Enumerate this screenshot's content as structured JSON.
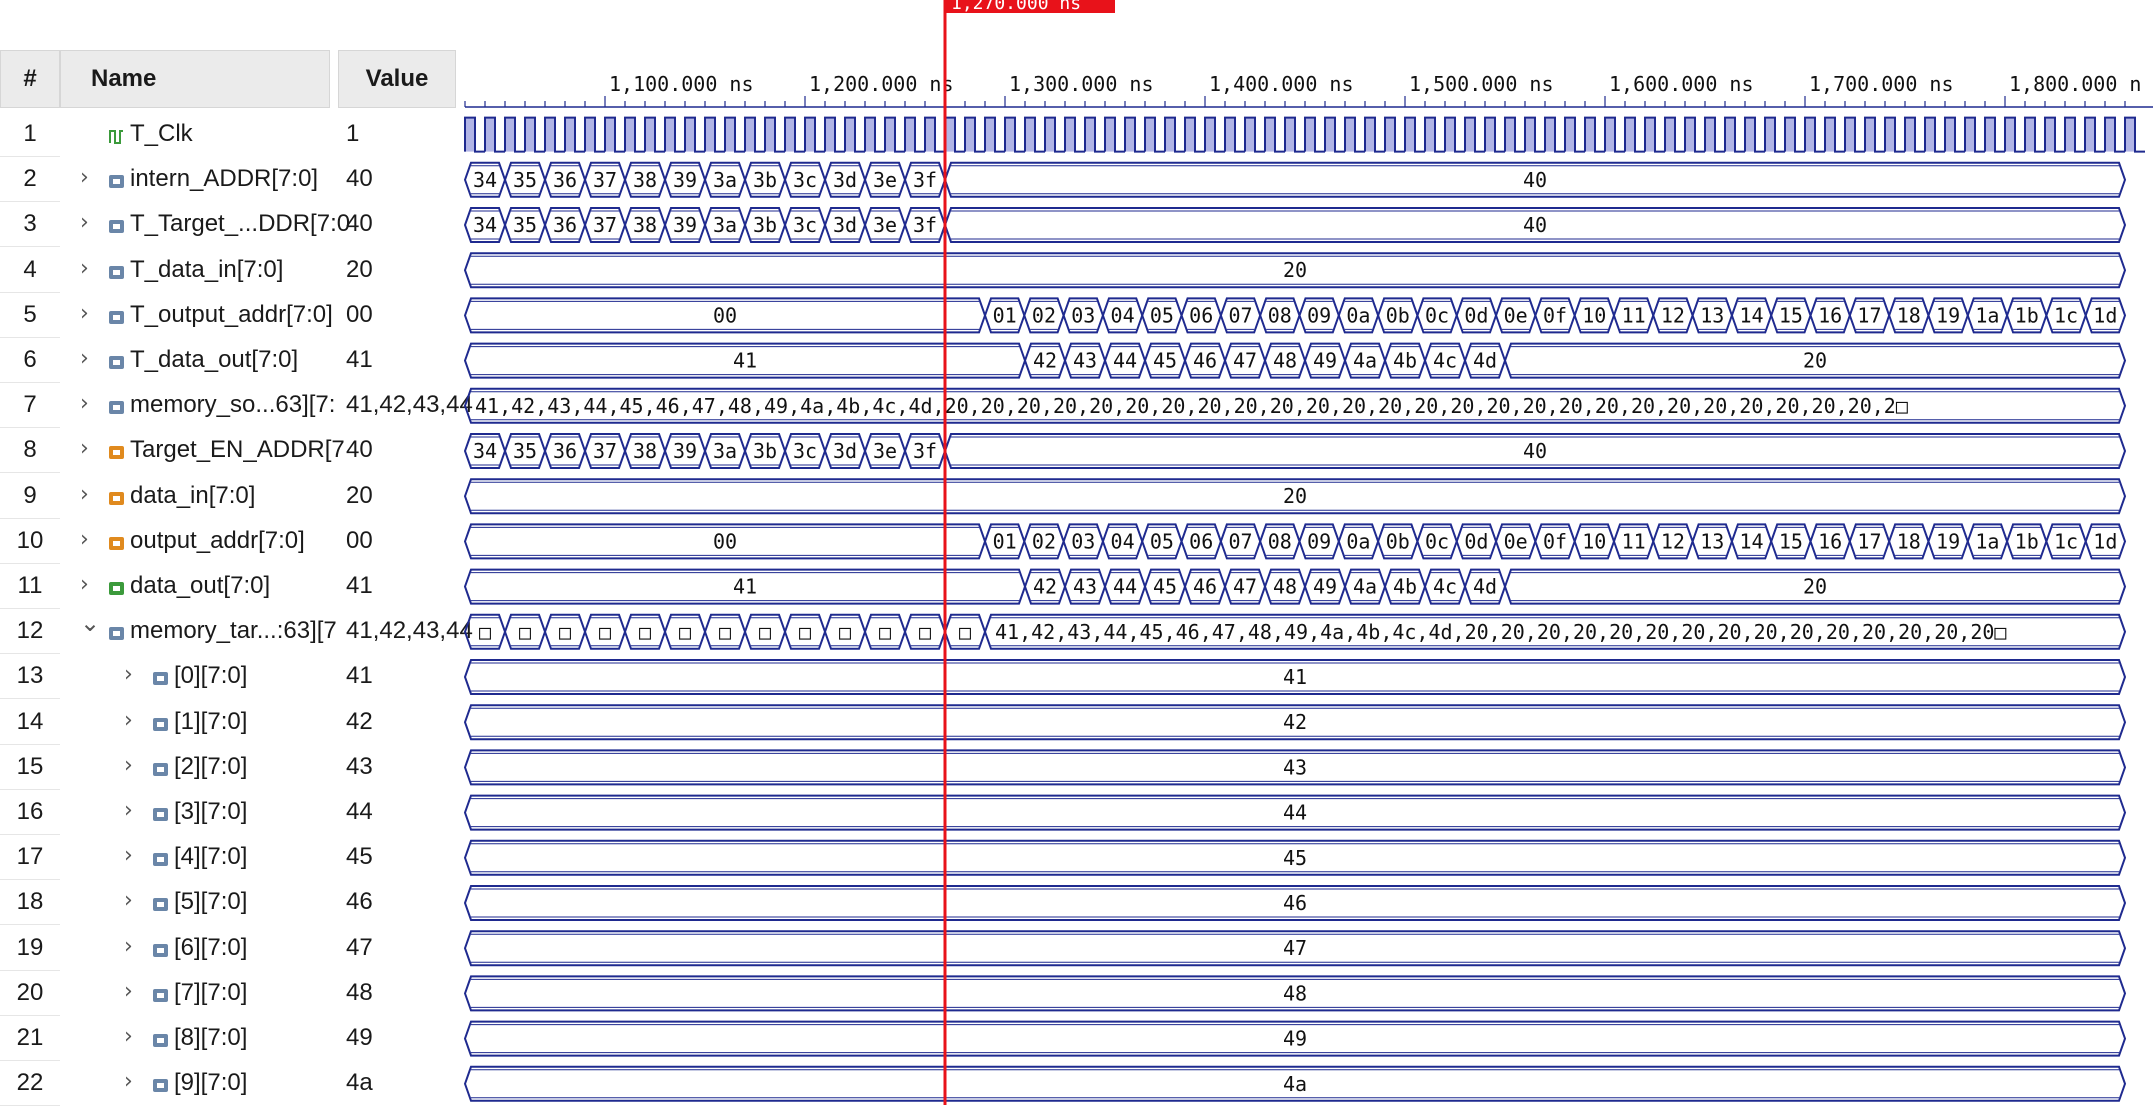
{
  "header": {
    "num": "#",
    "name": "Name",
    "value": "Value"
  },
  "cursor": {
    "time_ns": 1270,
    "label": "1,270.000 ns"
  },
  "timeline": {
    "ticks": [
      {
        "t": 1100,
        "label": "1,100.000 ns"
      },
      {
        "t": 1200,
        "label": "1,200.000 ns"
      },
      {
        "t": 1300,
        "label": "1,300.000 ns"
      },
      {
        "t": 1400,
        "label": "1,400.000 ns"
      },
      {
        "t": 1500,
        "label": "1,500.000 ns"
      },
      {
        "t": 1600,
        "label": "1,600.000 ns"
      },
      {
        "t": 1700,
        "label": "1,700.000 ns"
      },
      {
        "t": 1800,
        "label": "1,800.000 ns"
      }
    ],
    "truncated_last": "1,800.000 n"
  },
  "rows": [
    {
      "n": "1",
      "name": "T_Clk",
      "value": "1",
      "icon": "clock-signal-icon",
      "expand": "none",
      "indent": 0,
      "kind": "clock"
    },
    {
      "n": "2",
      "name": "intern_ADDR[7:0]",
      "value": "40",
      "icon": "bus-signal-icon",
      "expand": "collapsed",
      "indent": 0,
      "kind": "bus",
      "segments": [
        {
          "from": 1030,
          "to": 1270,
          "labels": [
            "34",
            "35",
            "36",
            "37",
            "38",
            "39",
            "3a",
            "3b",
            "3c",
            "3d",
            "3e",
            "3f"
          ]
        },
        {
          "from": 1270,
          "to": 1860,
          "labels": [
            "40"
          ]
        }
      ]
    },
    {
      "n": "3",
      "name": "T_Target_...DDR[7:0",
      "value": "40",
      "icon": "bus-signal-icon",
      "expand": "collapsed",
      "indent": 0,
      "kind": "bus",
      "segments": [
        {
          "from": 1030,
          "to": 1270,
          "labels": [
            "34",
            "35",
            "36",
            "37",
            "38",
            "39",
            "3a",
            "3b",
            "3c",
            "3d",
            "3e",
            "3f"
          ]
        },
        {
          "from": 1270,
          "to": 1860,
          "labels": [
            "40"
          ]
        }
      ]
    },
    {
      "n": "4",
      "name": "T_data_in[7:0]",
      "value": "20",
      "icon": "bus-signal-icon",
      "expand": "collapsed",
      "indent": 0,
      "kind": "bus",
      "segments": [
        {
          "from": 1030,
          "to": 1860,
          "labels": [
            "20"
          ]
        }
      ]
    },
    {
      "n": "5",
      "name": "T_output_addr[7:0]",
      "value": "00",
      "icon": "bus-signal-icon",
      "expand": "collapsed",
      "indent": 0,
      "kind": "bus",
      "segments": [
        {
          "from": 1030,
          "to": 1290,
          "labels": [
            "00"
          ]
        },
        {
          "from": 1290,
          "to": 1860,
          "labels": [
            "01",
            "02",
            "03",
            "04",
            "05",
            "06",
            "07",
            "08",
            "09",
            "0a",
            "0b",
            "0c",
            "0d",
            "0e",
            "0f",
            "10",
            "11",
            "12",
            "13",
            "14",
            "15",
            "16",
            "17",
            "18",
            "19",
            "1a",
            "1b",
            "1c",
            "1d"
          ]
        }
      ]
    },
    {
      "n": "6",
      "name": "T_data_out[7:0]",
      "value": "41",
      "icon": "bus-signal-icon",
      "expand": "collapsed",
      "indent": 0,
      "kind": "bus",
      "segments": [
        {
          "from": 1030,
          "to": 1310,
          "labels": [
            "41"
          ]
        },
        {
          "from": 1310,
          "to": 1550,
          "labels": [
            "42",
            "43",
            "44",
            "45",
            "46",
            "47",
            "48",
            "49",
            "4a",
            "4b",
            "4c",
            "4d"
          ]
        },
        {
          "from": 1550,
          "to": 1860,
          "labels": [
            "20"
          ]
        }
      ]
    },
    {
      "n": "7",
      "name": "memory_so...63][7:",
      "value": "41,42,43,44",
      "icon": "bus-signal-icon",
      "expand": "collapsed",
      "indent": 0,
      "kind": "bus",
      "segments": [
        {
          "from": 1030,
          "to": 1860,
          "labels": [
            "41,42,43,44,45,46,47,48,49,4a,4b,4c,4d,20,20,20,20,20,20,20,20,20,20,20,20,20,20,20,20,20,20,20,20,20,20,20,20,20,20,2□"
          ]
        }
      ],
      "align": "left"
    },
    {
      "n": "8",
      "name": "Target_EN_ADDR[7",
      "value": "40",
      "icon": "input-port-icon",
      "expand": "collapsed",
      "indent": 0,
      "kind": "bus",
      "segments": [
        {
          "from": 1030,
          "to": 1270,
          "labels": [
            "34",
            "35",
            "36",
            "37",
            "38",
            "39",
            "3a",
            "3b",
            "3c",
            "3d",
            "3e",
            "3f"
          ]
        },
        {
          "from": 1270,
          "to": 1860,
          "labels": [
            "40"
          ]
        }
      ]
    },
    {
      "n": "9",
      "name": "data_in[7:0]",
      "value": "20",
      "icon": "input-port-icon",
      "expand": "collapsed",
      "indent": 0,
      "kind": "bus",
      "segments": [
        {
          "from": 1030,
          "to": 1860,
          "labels": [
            "20"
          ]
        }
      ]
    },
    {
      "n": "10",
      "name": "output_addr[7:0]",
      "value": "00",
      "icon": "input-port-icon",
      "expand": "collapsed",
      "indent": 0,
      "kind": "bus",
      "segments": [
        {
          "from": 1030,
          "to": 1290,
          "labels": [
            "00"
          ]
        },
        {
          "from": 1290,
          "to": 1860,
          "labels": [
            "01",
            "02",
            "03",
            "04",
            "05",
            "06",
            "07",
            "08",
            "09",
            "0a",
            "0b",
            "0c",
            "0d",
            "0e",
            "0f",
            "10",
            "11",
            "12",
            "13",
            "14",
            "15",
            "16",
            "17",
            "18",
            "19",
            "1a",
            "1b",
            "1c",
            "1d"
          ]
        }
      ]
    },
    {
      "n": "11",
      "name": "data_out[7:0]",
      "value": "41",
      "icon": "output-port-icon",
      "expand": "collapsed",
      "indent": 0,
      "kind": "bus",
      "segments": [
        {
          "from": 1030,
          "to": 1310,
          "labels": [
            "41"
          ]
        },
        {
          "from": 1310,
          "to": 1550,
          "labels": [
            "42",
            "43",
            "44",
            "45",
            "46",
            "47",
            "48",
            "49",
            "4a",
            "4b",
            "4c",
            "4d"
          ]
        },
        {
          "from": 1550,
          "to": 1860,
          "labels": [
            "20"
          ]
        }
      ]
    },
    {
      "n": "12",
      "name": "memory_tar...:63][7",
      "value": "41,42,43,44",
      "icon": "bus-signal-icon",
      "expand": "expanded",
      "indent": 0,
      "kind": "bus",
      "segments": [
        {
          "from": 1030,
          "to": 1290,
          "labels": [
            "□",
            "□",
            "□",
            "□",
            "□",
            "□",
            "□",
            "□",
            "□",
            "□",
            "□",
            "□",
            "□"
          ]
        },
        {
          "from": 1290,
          "to": 1860,
          "labels": [
            "41,42,43,44,45,46,47,48,49,4a,4b,4c,4d,20,20,20,20,20,20,20,20,20,20,20,20,20,20,20□"
          ]
        }
      ],
      "align": "left"
    },
    {
      "n": "13",
      "name": "[0][7:0]",
      "value": "41",
      "icon": "bus-signal-icon",
      "expand": "collapsed",
      "indent": 1,
      "kind": "bus",
      "segments": [
        {
          "from": 1030,
          "to": 1860,
          "labels": [
            "41"
          ]
        }
      ]
    },
    {
      "n": "14",
      "name": "[1][7:0]",
      "value": "42",
      "icon": "bus-signal-icon",
      "expand": "collapsed",
      "indent": 1,
      "kind": "bus",
      "segments": [
        {
          "from": 1030,
          "to": 1860,
          "labels": [
            "42"
          ]
        }
      ]
    },
    {
      "n": "15",
      "name": "[2][7:0]",
      "value": "43",
      "icon": "bus-signal-icon",
      "expand": "collapsed",
      "indent": 1,
      "kind": "bus",
      "segments": [
        {
          "from": 1030,
          "to": 1860,
          "labels": [
            "43"
          ]
        }
      ]
    },
    {
      "n": "16",
      "name": "[3][7:0]",
      "value": "44",
      "icon": "bus-signal-icon",
      "expand": "collapsed",
      "indent": 1,
      "kind": "bus",
      "segments": [
        {
          "from": 1030,
          "to": 1860,
          "labels": [
            "44"
          ]
        }
      ]
    },
    {
      "n": "17",
      "name": "[4][7:0]",
      "value": "45",
      "icon": "bus-signal-icon",
      "expand": "collapsed",
      "indent": 1,
      "kind": "bus",
      "segments": [
        {
          "from": 1030,
          "to": 1860,
          "labels": [
            "45"
          ]
        }
      ]
    },
    {
      "n": "18",
      "name": "[5][7:0]",
      "value": "46",
      "icon": "bus-signal-icon",
      "expand": "collapsed",
      "indent": 1,
      "kind": "bus",
      "segments": [
        {
          "from": 1030,
          "to": 1860,
          "labels": [
            "46"
          ]
        }
      ]
    },
    {
      "n": "19",
      "name": "[6][7:0]",
      "value": "47",
      "icon": "bus-signal-icon",
      "expand": "collapsed",
      "indent": 1,
      "kind": "bus",
      "segments": [
        {
          "from": 1030,
          "to": 1860,
          "labels": [
            "47"
          ]
        }
      ]
    },
    {
      "n": "20",
      "name": "[7][7:0]",
      "value": "48",
      "icon": "bus-signal-icon",
      "expand": "collapsed",
      "indent": 1,
      "kind": "bus",
      "segments": [
        {
          "from": 1030,
          "to": 1860,
          "labels": [
            "48"
          ]
        }
      ]
    },
    {
      "n": "21",
      "name": "[8][7:0]",
      "value": "49",
      "icon": "bus-signal-icon",
      "expand": "collapsed",
      "indent": 1,
      "kind": "bus",
      "segments": [
        {
          "from": 1030,
          "to": 1860,
          "labels": [
            "49"
          ]
        }
      ]
    },
    {
      "n": "22",
      "name": "[9][7:0]",
      "value": "4a",
      "icon": "bus-signal-icon",
      "expand": "collapsed",
      "indent": 1,
      "kind": "bus",
      "segments": [
        {
          "from": 1030,
          "to": 1860,
          "labels": [
            "4a"
          ]
        }
      ]
    }
  ],
  "colors": {
    "wave": "#1f2a8f",
    "clock_fill": "#b3b6e6",
    "cursor": "#e8121a",
    "icon_bus": "#6a86a8",
    "icon_input": "#e08a1e",
    "icon_output": "#3b9a3b",
    "icon_clock": "#3b9a3b"
  }
}
